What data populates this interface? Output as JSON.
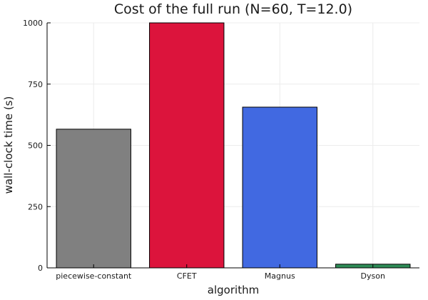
{
  "chart_data": {
    "type": "bar",
    "title": "Cost of the full run (N=60, T=12.0)",
    "xlabel": "algorithm",
    "ylabel": "wall-clock time (s)",
    "categories": [
      "piecewise-constant",
      "CFET",
      "Magnus",
      "Dyson"
    ],
    "values": [
      566,
      1000,
      656,
      15
    ],
    "colors": [
      "#808080",
      "#dc143c",
      "#4169e1",
      "#2e8b57"
    ],
    "ylim": [
      0,
      1000
    ],
    "yticks": [
      0,
      250,
      500,
      750,
      1000
    ],
    "grid": true,
    "legend": "none"
  }
}
